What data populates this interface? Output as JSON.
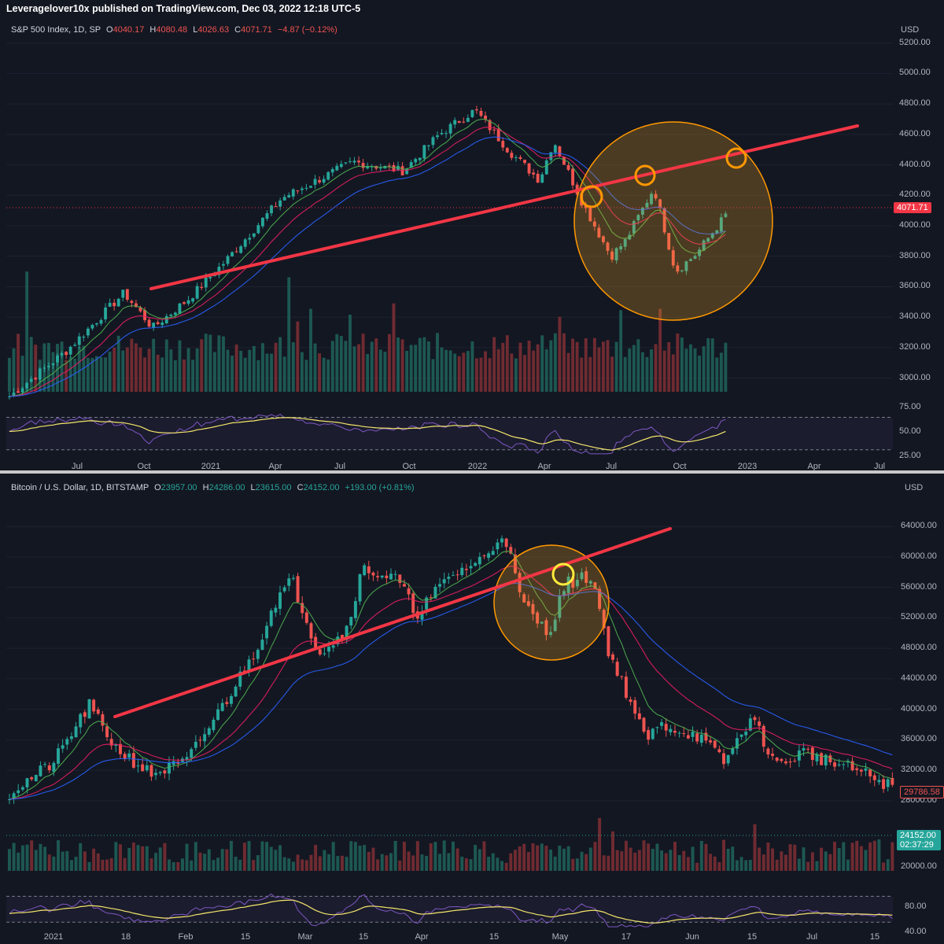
{
  "publisher_line": "Leveragelover10x published on TradingView.com, Dec 03, 2022 12:18 UTC-5",
  "colors": {
    "background": "#131722",
    "up": "#26a69a",
    "down": "#ef5350",
    "trendline": "#f23645",
    "circle_fill": "#f5a623",
    "marker": "#ff9800",
    "ema_fast": "#4caf50",
    "ema_mid": "#e91e63",
    "ema_slow": "#2962ff",
    "rsi": "#7e57c2",
    "rsi_ma": "#f5e66b"
  },
  "sp500": {
    "symbol": "S&P 500 Index, 1D, SP",
    "open_label": "O",
    "open": "4040.17",
    "high_label": "H",
    "high": "4080.48",
    "low_label": "L",
    "low": "4026.63",
    "close_label": "C",
    "close": "4071.71",
    "change": "−4.87 (−0.12%)",
    "currency": "USD",
    "last_price": "4071.71",
    "price_axis": [
      "5200.00",
      "5000.00",
      "4800.00",
      "4600.00",
      "4400.00",
      "4200.00",
      "4000.00",
      "3800.00",
      "3600.00",
      "3400.00",
      "3200.00",
      "3000.00"
    ],
    "rsi_axis": [
      "75.00",
      "50.00",
      "25.00"
    ],
    "time_axis": [
      "Jul",
      "Oct",
      "2021",
      "Apr",
      "Jul",
      "Oct",
      "2022",
      "Apr",
      "Jul",
      "Oct",
      "2023",
      "Apr",
      "Jul"
    ]
  },
  "btc": {
    "symbol": "Bitcoin / U.S. Dollar, 1D, BITSTAMP",
    "open_label": "O",
    "open": "23957.00",
    "high_label": "H",
    "high": "24286.00",
    "low_label": "L",
    "low": "23615.00",
    "close_label": "C",
    "close": "24152.00",
    "change": "+193.00 (+0.81%)",
    "currency": "USD",
    "ma_price": "29786.58",
    "last_price": "24152.00",
    "countdown": "02:37:29",
    "price_axis": [
      "64000.00",
      "60000.00",
      "56000.00",
      "52000.00",
      "48000.00",
      "44000.00",
      "40000.00",
      "36000.00",
      "32000.00",
      "28000.00",
      "20000.00"
    ],
    "rsi_axis": [
      "80.00",
      "40.00"
    ],
    "time_axis": [
      "2021",
      "18",
      "Feb",
      "15",
      "Mar",
      "15",
      "Apr",
      "15",
      "May",
      "17",
      "Jun",
      "15",
      "Jul",
      "15"
    ]
  },
  "chart_data": [
    {
      "type": "candlestick",
      "title": "S&P 500 Index, 1D, SP",
      "ylim": [
        2900,
        5250
      ],
      "series": [
        {
          "name": "price",
          "x": [
            "2020-05",
            "2020-07",
            "2020-09",
            "2020-11",
            "2021-01",
            "2021-03",
            "2021-05",
            "2021-07",
            "2021-09",
            "2021-11",
            "2022-01",
            "2022-03",
            "2022-05",
            "2022-06",
            "2022-08",
            "2022-10",
            "2022-12"
          ],
          "values": [
            2900,
            3150,
            3450,
            3550,
            3800,
            3950,
            4200,
            4400,
            4500,
            4650,
            4800,
            4450,
            4050,
            3700,
            4300,
            3600,
            4071.71
          ]
        }
      ],
      "annotations": [
        "trendline",
        "circle",
        "marker",
        "marker",
        "marker"
      ]
    },
    {
      "type": "candlestick",
      "title": "Bitcoin / U.S. Dollar, 1D, BITSTAMP",
      "ylim": [
        19000,
        66500
      ],
      "series": [
        {
          "name": "price",
          "x": [
            "2021-01-01",
            "2021-01-08",
            "2021-01-20",
            "2021-02-08",
            "2021-02-21",
            "2021-03-13",
            "2021-04-14",
            "2021-04-25",
            "2021-05-10",
            "2021-05-19",
            "2021-06-08",
            "2021-06-15",
            "2021-07-20"
          ],
          "values": [
            29000,
            41000,
            31000,
            44000,
            57000,
            61000,
            64000,
            50000,
            56000,
            38000,
            32000,
            40000,
            29786.58
          ]
        }
      ],
      "annotations": [
        "trendline",
        "circle",
        "marker"
      ]
    }
  ]
}
